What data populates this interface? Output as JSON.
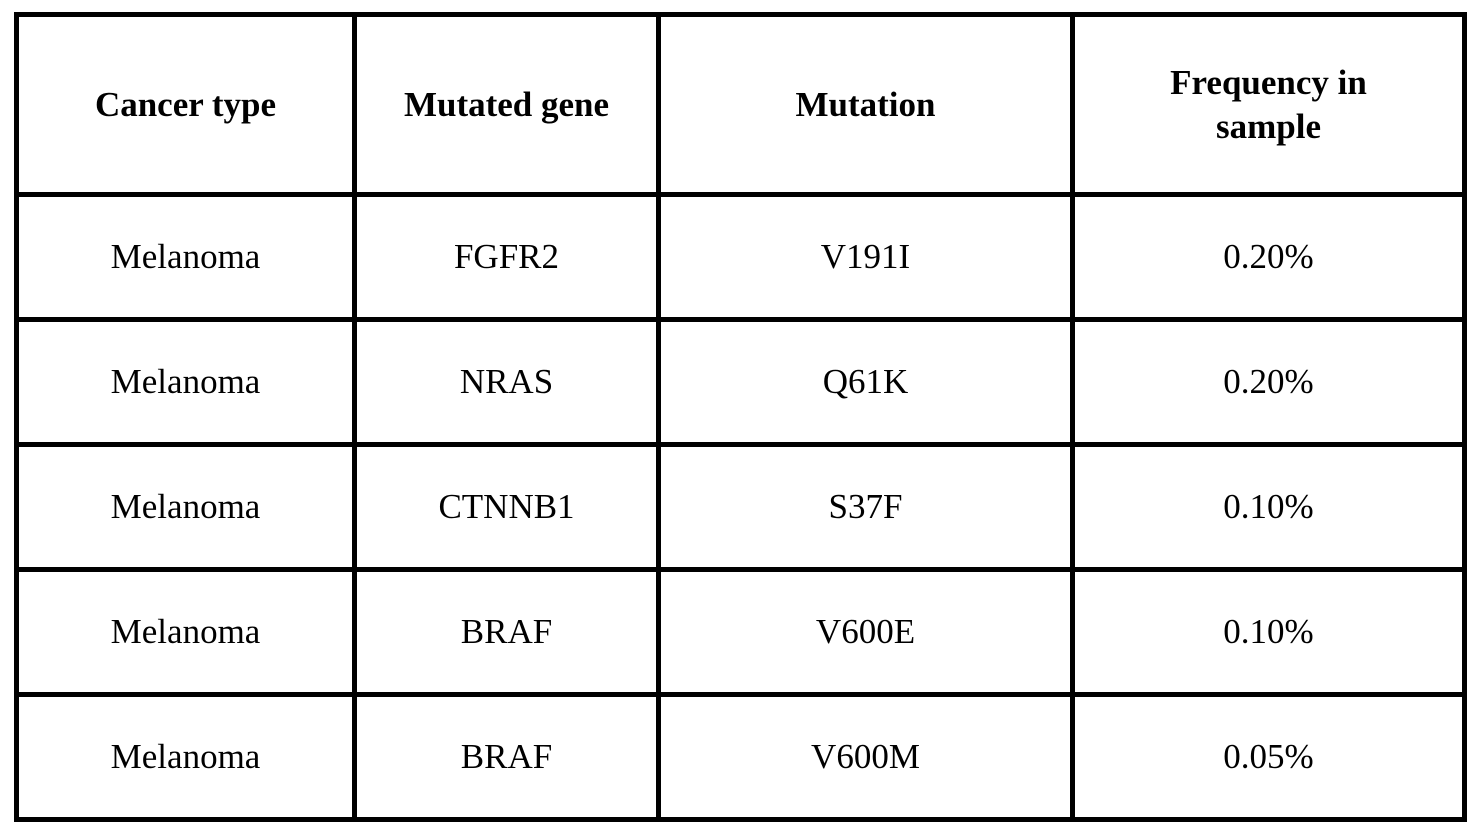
{
  "table": {
    "columns": [
      {
        "key": "cancer_type",
        "label": "Cancer type"
      },
      {
        "key": "mutated_gene",
        "label": "Mutated gene"
      },
      {
        "key": "mutation",
        "label": "Mutation"
      },
      {
        "key": "frequency",
        "label": "Frequency in sample"
      }
    ],
    "rows": [
      {
        "cancer_type": "Melanoma",
        "mutated_gene": "FGFR2",
        "mutation": "V191I",
        "frequency": "0.20%"
      },
      {
        "cancer_type": "Melanoma",
        "mutated_gene": "NRAS",
        "mutation": "Q61K",
        "frequency": "0.20%"
      },
      {
        "cancer_type": "Melanoma",
        "mutated_gene": "CTNNB1",
        "mutation": "S37F",
        "frequency": "0.10%"
      },
      {
        "cancer_type": "Melanoma",
        "mutated_gene": "BRAF",
        "mutation": "V600E",
        "frequency": "0.10%"
      },
      {
        "cancer_type": "Melanoma",
        "mutated_gene": "BRAF",
        "mutation": "V600M",
        "frequency": "0.05%"
      }
    ]
  },
  "chart_data": {
    "type": "table",
    "columns": [
      "Cancer type",
      "Mutated gene",
      "Mutation",
      "Frequency in sample"
    ],
    "rows": [
      [
        "Melanoma",
        "FGFR2",
        "V191I",
        "0.20%"
      ],
      [
        "Melanoma",
        "NRAS",
        "Q61K",
        "0.20%"
      ],
      [
        "Melanoma",
        "CTNNB1",
        "S37F",
        "0.10%"
      ],
      [
        "Melanoma",
        "BRAF",
        "V600E",
        "0.10%"
      ],
      [
        "Melanoma",
        "BRAF",
        "V600M",
        "0.05%"
      ]
    ]
  },
  "colors": {
    "border": "#000000",
    "background": "#ffffff",
    "text": "#000000"
  }
}
